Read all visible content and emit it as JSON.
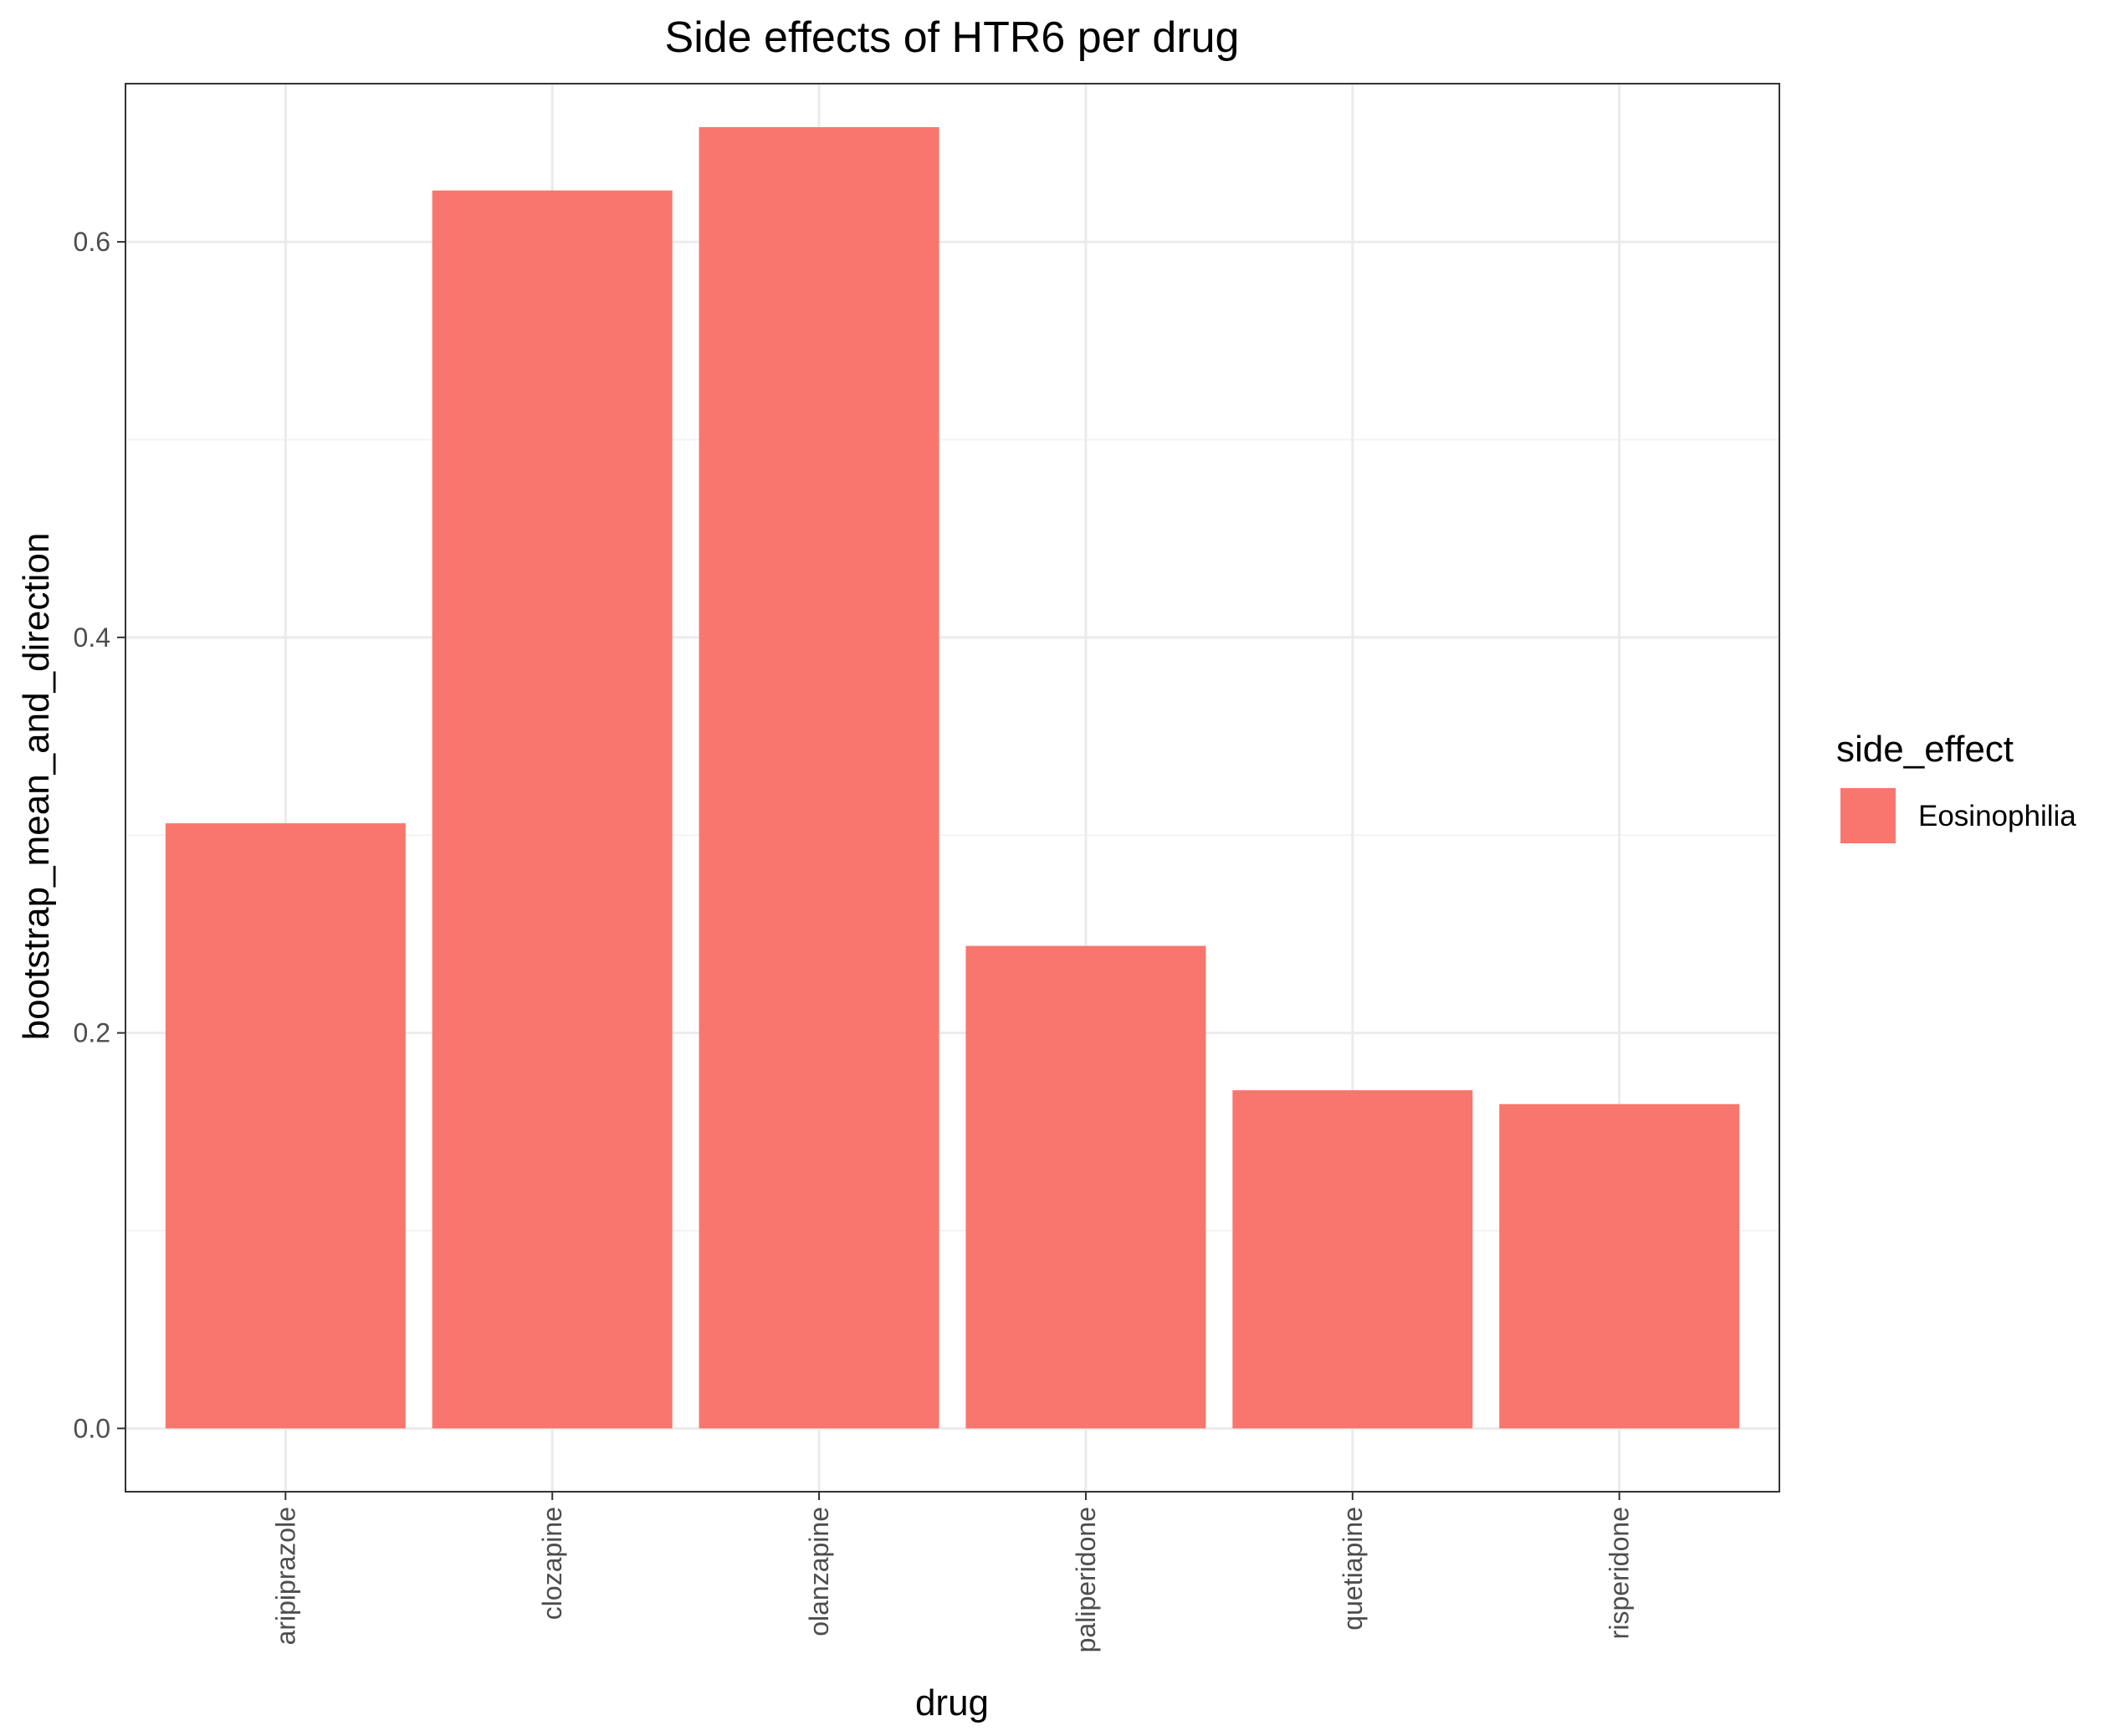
{
  "chart_data": {
    "type": "bar",
    "title": "Side effects of HTR6 per drug",
    "xlabel": "drug",
    "ylabel": "bootstrap_mean_and_direction",
    "categories": [
      "aripiprazole",
      "clozapine",
      "olanzapine",
      "paliperidone",
      "quetiapine",
      "risperidone"
    ],
    "series": [
      {
        "name": "Eosinophilia",
        "values": [
          0.306,
          0.626,
          0.658,
          0.244,
          0.171,
          0.164
        ]
      }
    ],
    "ylim": [
      -0.032,
      0.68
    ],
    "yticks": [
      0.0,
      0.2,
      0.4,
      0.6
    ],
    "ytick_labels": [
      "0.0",
      "0.2",
      "0.4",
      "0.6"
    ],
    "grid": true,
    "legend": {
      "title": "side_effect",
      "position": "right"
    },
    "colors": {
      "bar": "#F8766D",
      "grid_major": "#ebebeb",
      "grid_minor": "#f3f3f3",
      "panel_border": "#333333"
    }
  }
}
